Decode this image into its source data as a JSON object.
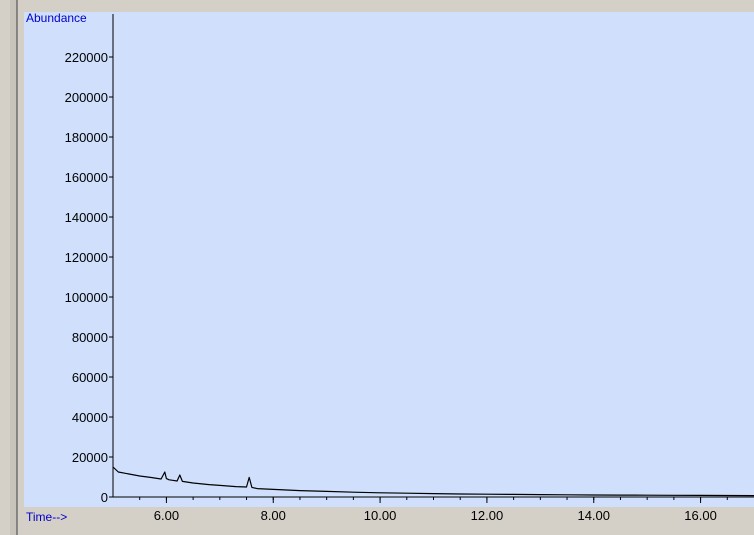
{
  "colors": {
    "plot_background": "#d0e0fc",
    "trace": "#000000",
    "axis_title": "#0000cc",
    "window_chrome": "#d4d0c8"
  },
  "chart_data": {
    "type": "line",
    "title": "",
    "ylabel": "Abundance",
    "xlabel": "Time-->",
    "xlim": [
      5.0,
      17.0
    ],
    "ylim": [
      0,
      232000
    ],
    "xticks": [
      6.0,
      8.0,
      10.0,
      12.0,
      14.0,
      16.0
    ],
    "xtick_labels": [
      "6.00",
      "8.00",
      "10.00",
      "12.00",
      "14.00",
      "16.00"
    ],
    "yticks": [
      0,
      20000,
      40000,
      60000,
      80000,
      100000,
      120000,
      140000,
      160000,
      180000,
      200000,
      220000
    ],
    "ytick_labels": [
      "0",
      "20000",
      "40000",
      "60000",
      "80000",
      "100000",
      "120000",
      "140000",
      "160000",
      "180000",
      "200000",
      "220000"
    ],
    "grid": false,
    "series": [
      {
        "x": [
          5.0,
          5.1,
          5.3,
          5.5,
          5.7,
          5.9,
          5.97,
          6.0,
          6.05,
          6.1,
          6.2,
          6.25,
          6.3,
          6.5,
          6.8,
          7.0,
          7.3,
          7.5,
          7.55,
          7.6,
          7.7,
          8.0,
          8.5,
          9.0,
          9.5,
          10.0,
          10.5,
          11.0,
          11.5,
          12.0,
          12.5,
          13.0,
          13.5,
          14.0,
          14.5,
          15.0,
          15.5,
          16.0,
          16.5,
          17.0
        ],
        "y": [
          15000,
          12500,
          11500,
          10500,
          9800,
          9000,
          12500,
          9200,
          8600,
          8400,
          8000,
          11000,
          7800,
          7000,
          6200,
          5800,
          5200,
          5000,
          9800,
          4800,
          4200,
          3800,
          3200,
          2800,
          2400,
          2100,
          1900,
          1700,
          1500,
          1400,
          1300,
          1200,
          1100,
          1000,
          950,
          900,
          850,
          800,
          750,
          700
        ]
      }
    ]
  }
}
